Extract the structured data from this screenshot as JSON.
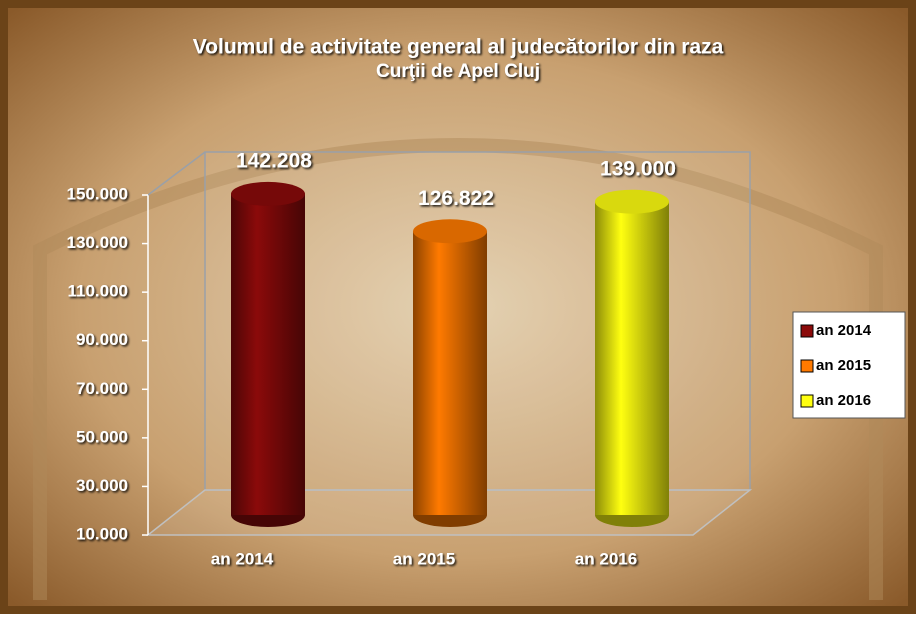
{
  "chart_data": {
    "type": "bar3d",
    "title": [
      "Volumul de activitate general al judecătorilor din raza",
      "Curţii de Apel Cluj"
    ],
    "categories": [
      "an 2014",
      "an 2015",
      "an 2016"
    ],
    "values": [
      142208,
      126822,
      139000
    ],
    "value_labels": [
      "142.208",
      "126.822",
      "139.000"
    ],
    "colors": [
      "#8b0a0a",
      "#ff7a00",
      "#ffff10"
    ],
    "ylim": [
      10000,
      150000
    ],
    "yticks": [
      {
        "value": 10000,
        "label": "10.000"
      },
      {
        "value": 30000,
        "label": "30.000"
      },
      {
        "value": 50000,
        "label": "50.000"
      },
      {
        "value": 70000,
        "label": "70.000"
      },
      {
        "value": 90000,
        "label": "90.000"
      },
      {
        "value": 110000,
        "label": "110.000"
      },
      {
        "value": 130000,
        "label": "130.000"
      },
      {
        "value": 150000,
        "label": "150.000"
      }
    ],
    "legend": "right"
  }
}
